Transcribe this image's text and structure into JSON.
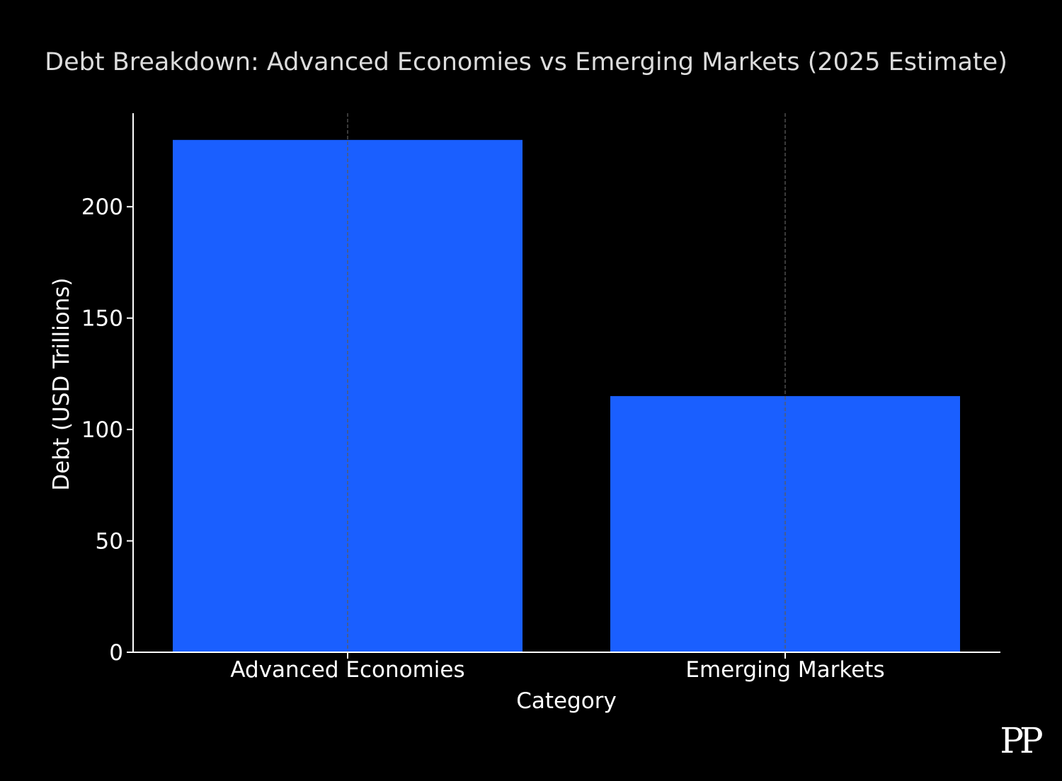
{
  "chart_data": {
    "type": "bar",
    "title": "Debt Breakdown: Advanced Economies vs Emerging Markets (2025 Estimate)",
    "xlabel": "Category",
    "ylabel": "Debt (USD Trillions)",
    "categories": [
      "Advanced Economies",
      "Emerging Markets"
    ],
    "values": [
      230,
      115
    ],
    "ylim": [
      0,
      242
    ],
    "yticks": [
      0,
      50,
      100,
      150,
      200
    ],
    "grid": "vertical dashed lines at category centers",
    "bar_color": "#1a5fff",
    "background_color": "#000000"
  },
  "logo": {
    "text": "PP"
  }
}
